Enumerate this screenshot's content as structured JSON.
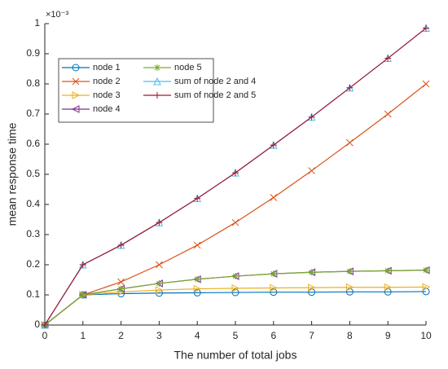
{
  "chart_data": {
    "type": "line",
    "xlabel": "The number of total jobs",
    "ylabel": "mean response time",
    "y_exponent_label": "×10⁻³",
    "x": [
      0,
      1,
      2,
      3,
      4,
      5,
      6,
      7,
      8,
      9,
      10
    ],
    "series": [
      {
        "name": "node 1",
        "color": "#0072BD",
        "marker": "o",
        "values": [
          0,
          0.1,
          0.104,
          0.106,
          0.107,
          0.108,
          0.109,
          0.109,
          0.11,
          0.11,
          0.111
        ]
      },
      {
        "name": "node 2",
        "color": "#D95319",
        "marker": "x",
        "values": [
          0,
          0.1,
          0.143,
          0.2,
          0.265,
          0.34,
          0.423,
          0.512,
          0.605,
          0.7,
          0.8
        ]
      },
      {
        "name": "node 3",
        "color": "#EDB120",
        "marker": ">",
        "values": [
          0,
          0.1,
          0.11,
          0.116,
          0.12,
          0.122,
          0.123,
          0.124,
          0.125,
          0.125,
          0.126
        ]
      },
      {
        "name": "node 4",
        "color": "#7E2F8E",
        "marker": "<",
        "values": [
          0,
          0.1,
          0.12,
          0.138,
          0.152,
          0.162,
          0.17,
          0.175,
          0.178,
          0.18,
          0.182
        ]
      },
      {
        "name": "node 5",
        "color": "#77AC30",
        "marker": "*",
        "values": [
          0,
          0.1,
          0.12,
          0.138,
          0.152,
          0.162,
          0.17,
          0.175,
          0.178,
          0.18,
          0.182
        ]
      },
      {
        "name": "sum of node 2 and 4",
        "color": "#4DBEEE",
        "marker": "^",
        "values": [
          0,
          0.2,
          0.265,
          0.34,
          0.42,
          0.505,
          0.597,
          0.69,
          0.787,
          0.885,
          0.985
        ]
      },
      {
        "name": "sum of node 2 and 5",
        "color": "#A2142F",
        "marker": "+",
        "values": [
          0,
          0.2,
          0.265,
          0.34,
          0.42,
          0.505,
          0.597,
          0.69,
          0.787,
          0.885,
          0.985
        ]
      }
    ],
    "xlim": [
      0,
      10
    ],
    "xticks": [
      0,
      1,
      2,
      3,
      4,
      5,
      6,
      7,
      8,
      9,
      10
    ],
    "ylim": [
      0,
      1
    ],
    "yticks": [
      0,
      0.1,
      0.2,
      0.3,
      0.4,
      0.5,
      0.6,
      0.7,
      0.8,
      0.9,
      1
    ],
    "grid": false,
    "legend": "upper left"
  }
}
